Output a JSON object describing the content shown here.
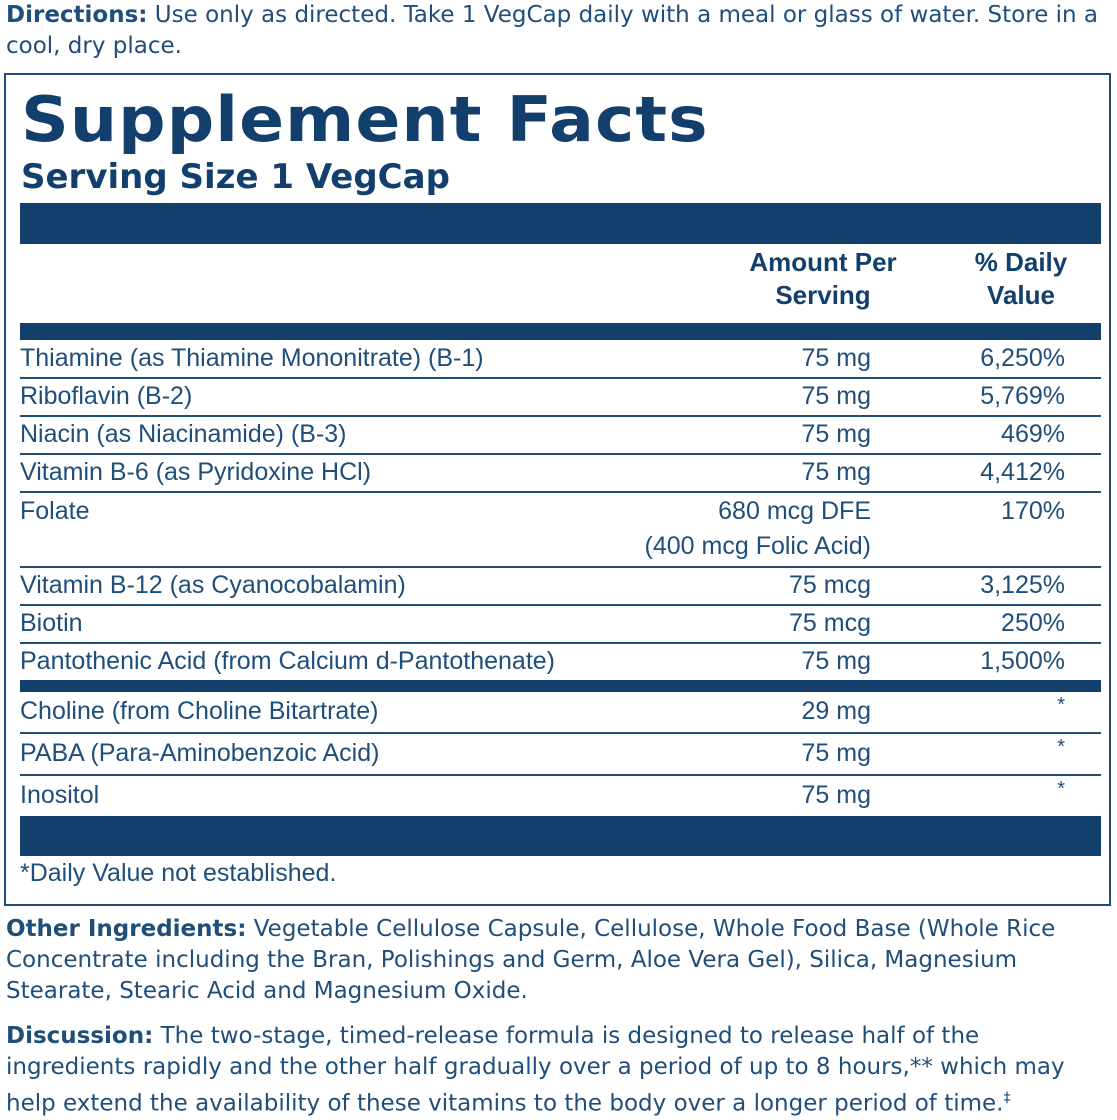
{
  "directions": {
    "label": "Directions:",
    "text": " Use only as directed. Take 1 VegCap daily with a meal or glass of water. Store in a cool, dry place."
  },
  "facts": {
    "title": "Supplement Facts",
    "serving_size": "Serving Size 1 VegCap",
    "col_amount": "Amount Per Serving",
    "col_dv": "% Daily Value",
    "rows": [
      {
        "name": "Thiamine (as Thiamine Mononitrate) (B-1)",
        "amount": "75 mg",
        "dv": "6,250%"
      },
      {
        "name": "Riboflavin (B-2)",
        "amount": "75 mg",
        "dv": "5,769%"
      },
      {
        "name": "Niacin (as Niacinamide) (B-3)",
        "amount": "75 mg",
        "dv": "469%"
      },
      {
        "name": "Vitamin B-6 (as Pyridoxine HCl)",
        "amount": "75 mg",
        "dv": "4,412%"
      },
      {
        "name": "Folate",
        "amount": "680 mcg DFE",
        "amount_line2": "(400 mcg Folic Acid)",
        "dv": "170%"
      },
      {
        "name": "Vitamin B-12 (as Cyanocobalamin)",
        "amount": "75 mcg",
        "dv": "3,125%"
      },
      {
        "name": "Biotin",
        "amount": "75 mcg",
        "dv": "250%"
      },
      {
        "name": "Pantothenic Acid (from Calcium d-Pantothenate)",
        "amount": "75 mg",
        "dv": "1,500%"
      },
      {
        "name": "Choline (from Choline Bitartrate)",
        "amount": "29 mg",
        "dv": "*"
      },
      {
        "name": "PABA (Para-Aminobenzoic Acid)",
        "amount": "75 mg",
        "dv": "*"
      },
      {
        "name": "Inositol",
        "amount": "75 mg",
        "dv": "*"
      }
    ],
    "footnote": "*Daily Value not established."
  },
  "other_ingredients": {
    "label": "Other Ingredients:",
    "text": " Vegetable Cellulose Capsule, Cellulose, Whole Food Base (Whole Rice Concentrate including the Bran, Polishings and Germ, Aloe Vera Gel), Silica, Magnesium Stearate, Stearic Acid and Magnesium Oxide."
  },
  "discussion": {
    "label": "Discussion:",
    "text": " The two-stage, timed-release formula is designed to release half of the ingredients rapidly and the other half gradually over a period of up to 8 hours,** which may help extend the availability of these vitamins to the body over a longer period of time.",
    "mark": "‡"
  },
  "colors": {
    "primary": "#1f4e79",
    "dark": "#123f6b"
  }
}
